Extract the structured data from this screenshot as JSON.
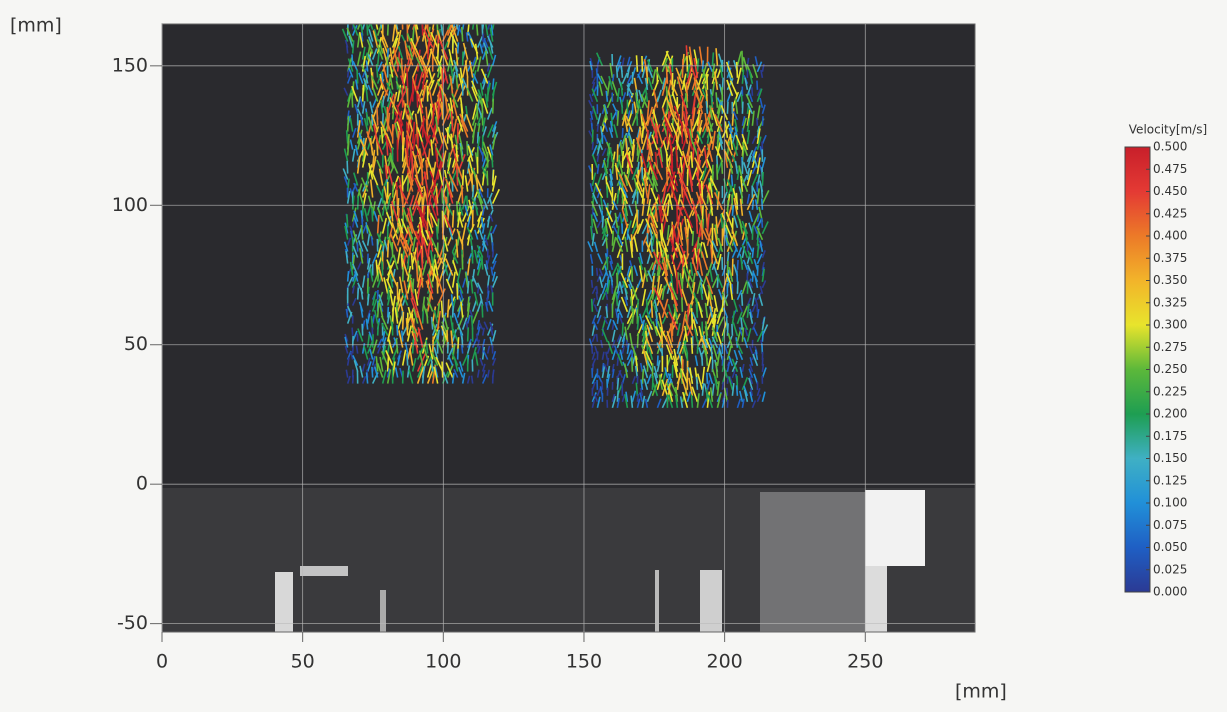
{
  "chart_data": {
    "type": "quiver",
    "xlabel": "[mm]",
    "ylabel": "[mm]",
    "xlim": [
      0,
      289
    ],
    "ylim": [
      -53,
      165
    ],
    "xticks": [
      0,
      50,
      100,
      150,
      200,
      250
    ],
    "yticks": [
      -50,
      0,
      50,
      100,
      150
    ],
    "grid": true,
    "colorbar": {
      "title": "Velocity[m/s]",
      "lim": [
        0,
        0.5
      ],
      "colors": [
        "#2b3a94",
        "#1f5fc4",
        "#2190d8",
        "#3fb0c4",
        "#1e9e52",
        "#5cb83a",
        "#e8e42c",
        "#f2b42a",
        "#ec7a28",
        "#e43a34",
        "#c81f2a"
      ],
      "ticks": [
        {
          "value": 0.5,
          "label": "0.500"
        },
        {
          "value": 0.475,
          "label": "0.475"
        },
        {
          "value": 0.45,
          "label": "0.450"
        },
        {
          "value": 0.425,
          "label": "0.425"
        },
        {
          "value": 0.4,
          "label": "0.400"
        },
        {
          "value": 0.375,
          "label": "0.375"
        },
        {
          "value": 0.35,
          "label": "0.350"
        },
        {
          "value": 0.325,
          "label": "0.325"
        },
        {
          "value": 0.3,
          "label": "0.300"
        },
        {
          "value": 0.275,
          "label": "0.275"
        },
        {
          "value": 0.25,
          "label": "0.250"
        },
        {
          "value": 0.225,
          "label": "0.225"
        },
        {
          "value": 0.2,
          "label": "0.200"
        },
        {
          "value": 0.175,
          "label": "0.175"
        },
        {
          "value": 0.15,
          "label": "0.150"
        },
        {
          "value": 0.125,
          "label": "0.125"
        },
        {
          "value": 0.1,
          "label": "0.100"
        },
        {
          "value": 0.075,
          "label": "0.075"
        },
        {
          "value": 0.05,
          "label": "0.050"
        },
        {
          "value": 0.025,
          "label": "0.025"
        },
        {
          "value": 0,
          "label": "0.000"
        }
      ]
    }
  }
}
